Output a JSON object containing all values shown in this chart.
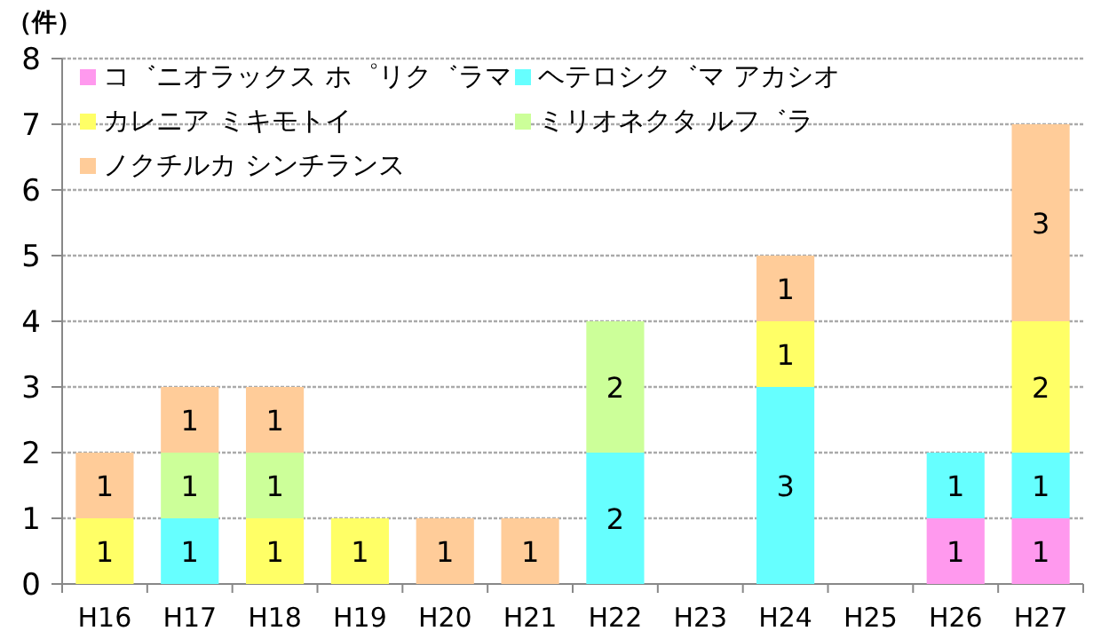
{
  "chart_data": {
    "type": "bar",
    "ylabel": "（件）",
    "categories": [
      "H16",
      "H17",
      "H18",
      "H19",
      "H20",
      "H21",
      "H22",
      "H23",
      "H24",
      "H25",
      "H26",
      "H27"
    ],
    "stacked": true,
    "ylim": [
      0,
      8
    ],
    "yticks": [
      0,
      1,
      2,
      3,
      4,
      5,
      6,
      7,
      8
    ],
    "grid": "y",
    "legend": "top left",
    "data_labels": true,
    "series": [
      {
        "name": "コ゛ニオラックス ホ゜リク゛ラマ",
        "color": "#ff99ee",
        "values": [
          null,
          null,
          null,
          null,
          null,
          null,
          null,
          null,
          null,
          null,
          1,
          1
        ]
      },
      {
        "name": "ヘテロシク゛マ アカシオ",
        "color": "#66ffff",
        "values": [
          null,
          1,
          null,
          null,
          null,
          null,
          2,
          null,
          3,
          null,
          1,
          1
        ]
      },
      {
        "name": "カレニア ミキモトイ",
        "color": "#ffff66",
        "values": [
          1,
          null,
          1,
          1,
          null,
          null,
          null,
          null,
          1,
          null,
          null,
          2
        ]
      },
      {
        "name": "ミリオネクタ ルフ゛ラ",
        "color": "#ccff99",
        "values": [
          null,
          1,
          1,
          null,
          null,
          null,
          2,
          null,
          null,
          null,
          null,
          null
        ]
      },
      {
        "name": "ノクチルカ シンチランス",
        "color": "#ffcc99",
        "values": [
          1,
          1,
          1,
          null,
          1,
          1,
          null,
          null,
          1,
          null,
          null,
          3
        ]
      }
    ]
  }
}
